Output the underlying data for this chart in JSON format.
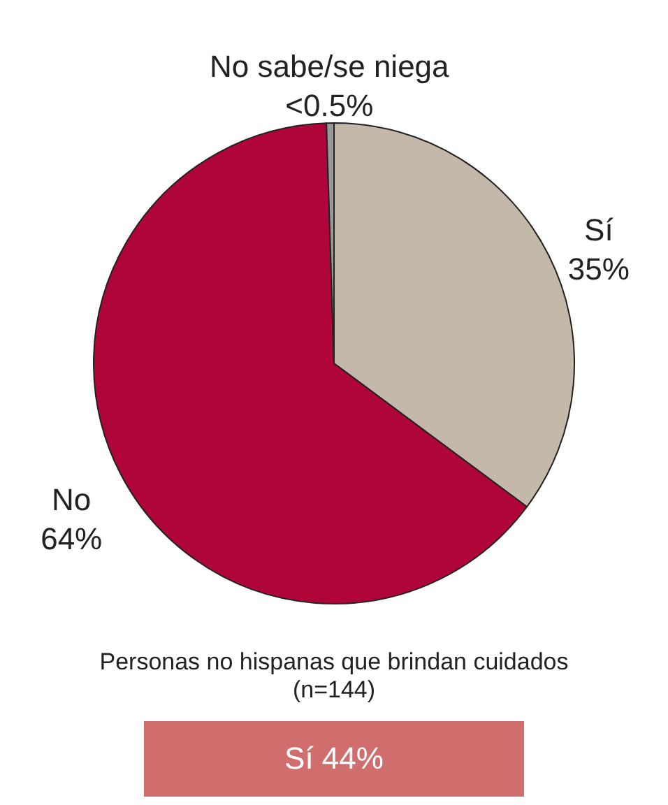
{
  "chart_data": {
    "type": "pie",
    "categories": [
      "Sí",
      "No",
      "No sabe/se niega"
    ],
    "values": [
      35,
      64,
      0.5
    ],
    "value_labels": [
      "35%",
      "64%",
      "<0.5%"
    ],
    "colors": [
      "#c4b8aa",
      "#b00538",
      "#9a9a9a"
    ],
    "annotations": [
      "Personas no hispanas que brindan cuidados\n(n=144)",
      "Sí 44%"
    ]
  }
}
